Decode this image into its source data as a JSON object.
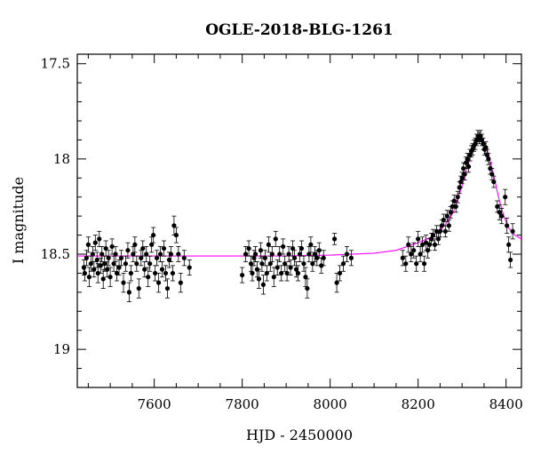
{
  "chart_data": {
    "type": "scatter",
    "title": "OGLE-2018-BLG-1261",
    "xlabel": "HJD - 2450000",
    "ylabel": "I magnitude",
    "xlim": [
      7425,
      8435
    ],
    "ylim": [
      19.2,
      17.45
    ],
    "y_inverted": true,
    "x_ticks": [
      7600,
      7800,
      8000,
      8200,
      8400
    ],
    "y_ticks": [
      17.5,
      18,
      18.5,
      19
    ],
    "grid": false,
    "series": [
      {
        "style": "points_with_errorbars",
        "color": "#000000",
        "points": [
          [
            7440,
            18.57,
            0.04
          ],
          [
            7442,
            18.6,
            0.04
          ],
          [
            7446,
            18.52,
            0.04
          ],
          [
            7450,
            18.45,
            0.04
          ],
          [
            7452,
            18.62,
            0.05
          ],
          [
            7456,
            18.55,
            0.04
          ],
          [
            7460,
            18.5,
            0.04
          ],
          [
            7463,
            18.58,
            0.04
          ],
          [
            7466,
            18.44,
            0.04
          ],
          [
            7470,
            18.53,
            0.04
          ],
          [
            7472,
            18.6,
            0.05
          ],
          [
            7475,
            18.42,
            0.04
          ],
          [
            7478,
            18.56,
            0.04
          ],
          [
            7481,
            18.5,
            0.04
          ],
          [
            7484,
            18.63,
            0.05
          ],
          [
            7487,
            18.55,
            0.04
          ],
          [
            7490,
            18.47,
            0.04
          ],
          [
            7493,
            18.58,
            0.04
          ],
          [
            7496,
            18.52,
            0.04
          ],
          [
            7500,
            18.62,
            0.05
          ],
          [
            7504,
            18.46,
            0.04
          ],
          [
            7508,
            18.55,
            0.04
          ],
          [
            7512,
            18.5,
            0.04
          ],
          [
            7515,
            18.6,
            0.04
          ],
          [
            7520,
            18.57,
            0.04
          ],
          [
            7525,
            18.52,
            0.04
          ],
          [
            7530,
            18.65,
            0.05
          ],
          [
            7535,
            18.55,
            0.04
          ],
          [
            7540,
            18.48,
            0.04
          ],
          [
            7543,
            18.7,
            0.05
          ],
          [
            7547,
            18.6,
            0.04
          ],
          [
            7552,
            18.5,
            0.04
          ],
          [
            7556,
            18.45,
            0.04
          ],
          [
            7560,
            18.55,
            0.04
          ],
          [
            7565,
            18.68,
            0.05
          ],
          [
            7570,
            18.52,
            0.04
          ],
          [
            7574,
            18.47,
            0.04
          ],
          [
            7578,
            18.58,
            0.04
          ],
          [
            7582,
            18.5,
            0.04
          ],
          [
            7586,
            18.62,
            0.05
          ],
          [
            7590,
            18.55,
            0.04
          ],
          [
            7594,
            18.45,
            0.04
          ],
          [
            7598,
            18.4,
            0.04
          ],
          [
            7602,
            18.6,
            0.04
          ],
          [
            7606,
            18.52,
            0.04
          ],
          [
            7610,
            18.65,
            0.05
          ],
          [
            7614,
            18.5,
            0.04
          ],
          [
            7618,
            18.58,
            0.04
          ],
          [
            7622,
            18.47,
            0.04
          ],
          [
            7626,
            18.6,
            0.04
          ],
          [
            7630,
            18.68,
            0.05
          ],
          [
            7634,
            18.53,
            0.04
          ],
          [
            7638,
            18.5,
            0.04
          ],
          [
            7642,
            18.6,
            0.04
          ],
          [
            7645,
            18.35,
            0.05
          ],
          [
            7650,
            18.4,
            0.04
          ],
          [
            7655,
            18.5,
            0.04
          ],
          [
            7660,
            18.65,
            0.05
          ],
          [
            7668,
            18.52,
            0.04
          ],
          [
            7680,
            18.57,
            0.04
          ],
          [
            7800,
            18.61,
            0.04
          ],
          [
            7808,
            18.5,
            0.04
          ],
          [
            7815,
            18.47,
            0.04
          ],
          [
            7820,
            18.55,
            0.04
          ],
          [
            7823,
            18.6,
            0.04
          ],
          [
            7827,
            18.52,
            0.04
          ],
          [
            7830,
            18.5,
            0.04
          ],
          [
            7834,
            18.58,
            0.04
          ],
          [
            7838,
            18.63,
            0.05
          ],
          [
            7842,
            18.48,
            0.04
          ],
          [
            7845,
            18.55,
            0.04
          ],
          [
            7848,
            18.66,
            0.05
          ],
          [
            7852,
            18.52,
            0.04
          ],
          [
            7856,
            18.6,
            0.04
          ],
          [
            7860,
            18.45,
            0.04
          ],
          [
            7864,
            18.55,
            0.04
          ],
          [
            7868,
            18.5,
            0.04
          ],
          [
            7872,
            18.62,
            0.05
          ],
          [
            7876,
            18.42,
            0.04
          ],
          [
            7880,
            18.57,
            0.04
          ],
          [
            7885,
            18.5,
            0.04
          ],
          [
            7889,
            18.6,
            0.04
          ],
          [
            7893,
            18.46,
            0.04
          ],
          [
            7897,
            18.55,
            0.04
          ],
          [
            7902,
            18.6,
            0.04
          ],
          [
            7906,
            18.5,
            0.04
          ],
          [
            7910,
            18.57,
            0.04
          ],
          [
            7915,
            18.47,
            0.04
          ],
          [
            7919,
            18.52,
            0.04
          ],
          [
            7923,
            18.58,
            0.04
          ],
          [
            7927,
            18.6,
            0.04
          ],
          [
            7931,
            18.5,
            0.04
          ],
          [
            7935,
            18.47,
            0.04
          ],
          [
            7940,
            18.55,
            0.04
          ],
          [
            7944,
            18.62,
            0.05
          ],
          [
            7948,
            18.68,
            0.05
          ],
          [
            7952,
            18.5,
            0.04
          ],
          [
            7956,
            18.45,
            0.04
          ],
          [
            7960,
            18.55,
            0.04
          ],
          [
            7965,
            18.5,
            0.04
          ],
          [
            7970,
            18.52,
            0.04
          ],
          [
            7975,
            18.48,
            0.04
          ],
          [
            7980,
            18.56,
            0.04
          ],
          [
            7985,
            18.52,
            0.04
          ],
          [
            8010,
            18.42,
            0.03
          ],
          [
            8015,
            18.65,
            0.05
          ],
          [
            8022,
            18.6,
            0.04
          ],
          [
            8030,
            18.55,
            0.04
          ],
          [
            8038,
            18.5,
            0.04
          ],
          [
            8048,
            18.52,
            0.04
          ],
          [
            8165,
            18.52,
            0.04
          ],
          [
            8172,
            18.55,
            0.04
          ],
          [
            8178,
            18.45,
            0.04
          ],
          [
            8184,
            18.5,
            0.04
          ],
          [
            8190,
            18.48,
            0.04
          ],
          [
            8196,
            18.55,
            0.04
          ],
          [
            8200,
            18.42,
            0.04
          ],
          [
            8205,
            18.5,
            0.04
          ],
          [
            8210,
            18.45,
            0.04
          ],
          [
            8214,
            18.55,
            0.04
          ],
          [
            8218,
            18.44,
            0.04
          ],
          [
            8222,
            18.48,
            0.04
          ],
          [
            8226,
            18.45,
            0.03
          ],
          [
            8230,
            18.42,
            0.03
          ],
          [
            8234,
            18.4,
            0.03
          ],
          [
            8238,
            18.45,
            0.03
          ],
          [
            8242,
            18.38,
            0.03
          ],
          [
            8246,
            18.42,
            0.03
          ],
          [
            8250,
            18.38,
            0.03
          ],
          [
            8254,
            18.35,
            0.03
          ],
          [
            8258,
            18.32,
            0.03
          ],
          [
            8262,
            18.38,
            0.03
          ],
          [
            8266,
            18.3,
            0.03
          ],
          [
            8270,
            18.35,
            0.03
          ],
          [
            8274,
            18.28,
            0.03
          ],
          [
            8278,
            18.25,
            0.03
          ],
          [
            8282,
            18.22,
            0.03
          ],
          [
            8286,
            18.25,
            0.03
          ],
          [
            8290,
            18.2,
            0.03
          ],
          [
            8294,
            18.15,
            0.03
          ],
          [
            8297,
            18.12,
            0.03
          ],
          [
            8300,
            18.1,
            0.03
          ],
          [
            8303,
            18.05,
            0.03
          ],
          [
            8306,
            18.08,
            0.03
          ],
          [
            8309,
            18.02,
            0.03
          ],
          [
            8312,
            18.0,
            0.03
          ],
          [
            8315,
            18.04,
            0.03
          ],
          [
            8318,
            17.98,
            0.03
          ],
          [
            8321,
            17.96,
            0.03
          ],
          [
            8324,
            17.95,
            0.03
          ],
          [
            8327,
            17.93,
            0.03
          ],
          [
            8330,
            17.92,
            0.03
          ],
          [
            8333,
            17.9,
            0.03
          ],
          [
            8336,
            17.88,
            0.03
          ],
          [
            8339,
            17.89,
            0.03
          ],
          [
            8342,
            17.88,
            0.03
          ],
          [
            8345,
            17.9,
            0.03
          ],
          [
            8348,
            17.92,
            0.03
          ],
          [
            8351,
            17.95,
            0.03
          ],
          [
            8354,
            17.94,
            0.03
          ],
          [
            8357,
            17.98,
            0.03
          ],
          [
            8360,
            18.0,
            0.03
          ],
          [
            8364,
            18.05,
            0.03
          ],
          [
            8368,
            18.08,
            0.03
          ],
          [
            8372,
            18.12,
            0.03
          ],
          [
            8380,
            18.25,
            0.03
          ],
          [
            8385,
            18.28,
            0.04
          ],
          [
            8390,
            18.3,
            0.04
          ],
          [
            8398,
            18.2,
            0.04
          ],
          [
            8402,
            18.35,
            0.04
          ],
          [
            8406,
            18.45,
            0.04
          ],
          [
            8410,
            18.53,
            0.04
          ],
          [
            8415,
            18.38,
            0.04
          ]
        ]
      },
      {
        "style": "model_curve",
        "color": "#ff00ff",
        "points": [
          [
            7425,
            18.51
          ],
          [
            7700,
            18.51
          ],
          [
            7900,
            18.51
          ],
          [
            8000,
            18.505
          ],
          [
            8100,
            18.495
          ],
          [
            8150,
            18.48
          ],
          [
            8200,
            18.44
          ],
          [
            8230,
            18.41
          ],
          [
            8260,
            18.35
          ],
          [
            8280,
            18.28
          ],
          [
            8300,
            18.14
          ],
          [
            8320,
            17.98
          ],
          [
            8335,
            17.91
          ],
          [
            8345,
            17.89
          ],
          [
            8355,
            17.93
          ],
          [
            8365,
            18.02
          ],
          [
            8375,
            18.12
          ],
          [
            8385,
            18.22
          ],
          [
            8395,
            18.3
          ],
          [
            8405,
            18.36
          ],
          [
            8420,
            18.4
          ],
          [
            8435,
            18.42
          ]
        ]
      }
    ]
  }
}
